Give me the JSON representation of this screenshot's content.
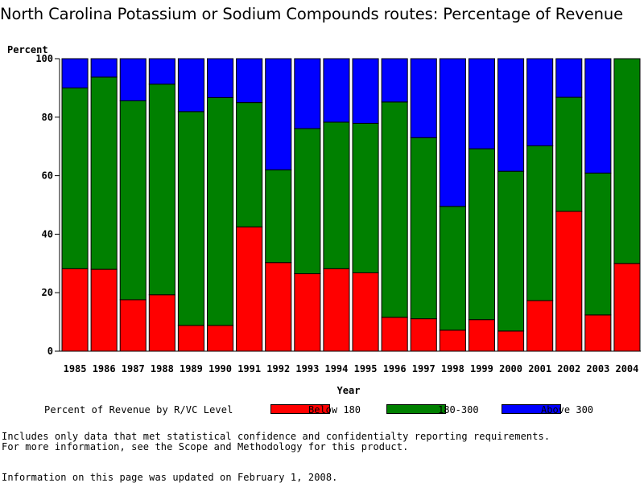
{
  "chart_data": {
    "type": "bar",
    "stacked": true,
    "title": "North Carolina Potassium or Sodium Compounds routes: Percentage of Revenue",
    "ylabel": "Percent",
    "xlabel": "Year",
    "ylim": [
      0,
      100
    ],
    "yticks": [
      0,
      20,
      40,
      60,
      80,
      100
    ],
    "categories": [
      "1985",
      "1986",
      "1987",
      "1988",
      "1989",
      "1990",
      "1991",
      "1992",
      "1993",
      "1994",
      "1995",
      "1996",
      "1997",
      "1998",
      "1999",
      "2000",
      "2001",
      "2002",
      "2003",
      "2004"
    ],
    "series": [
      {
        "name": "Below 180",
        "color": "#ff0000",
        "values": [
          28.2,
          28.0,
          17.6,
          19.3,
          8.8,
          8.8,
          42.5,
          30.3,
          26.5,
          28.2,
          26.8,
          11.6,
          11.1,
          7.2,
          10.8,
          6.9,
          17.3,
          47.8,
          12.4,
          30.0
        ]
      },
      {
        "name": "180-300",
        "color": "#008000",
        "values": [
          61.8,
          65.7,
          68.0,
          72.0,
          73.1,
          77.9,
          42.5,
          31.7,
          49.6,
          50.1,
          51.1,
          73.6,
          61.9,
          42.3,
          58.4,
          54.6,
          52.9,
          39.0,
          48.5,
          70.0
        ]
      },
      {
        "name": "Above 300",
        "color": "#0000ff",
        "values": [
          10.0,
          6.3,
          14.4,
          8.7,
          18.1,
          13.3,
          15.0,
          38.0,
          23.9,
          21.7,
          22.1,
          14.8,
          27.0,
          50.5,
          30.8,
          38.5,
          29.8,
          13.2,
          39.1,
          0.0
        ]
      }
    ],
    "legend": {
      "title": "Percent of Revenue by R/VC Level",
      "position": "bottom"
    },
    "grid": false
  },
  "notes": {
    "line1": "Includes only data that met statistical confidence and confidentialty reporting requirements.",
    "line2": "For more information, see the Scope and Methodology for this product.",
    "updated": "Information on this page was updated on February 1, 2008."
  },
  "colors": {
    "below_180": "#ff0000",
    "mid": "#008000",
    "above_300": "#0000ff"
  }
}
